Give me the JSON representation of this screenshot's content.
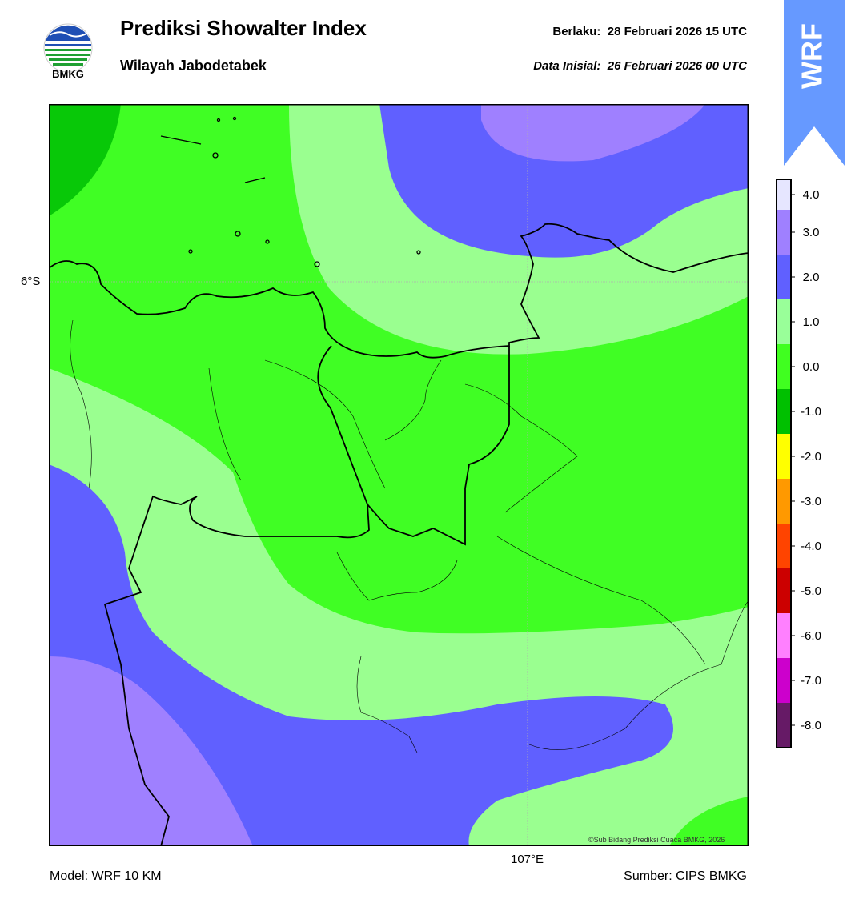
{
  "header": {
    "title": "Prediksi Showalter Index",
    "subtitle": "Wilayah Jabodetabek",
    "valid_label": "Berlaku:",
    "valid_value": "28 Februari 2026 15 UTC",
    "init_label": "Data Inisial:",
    "init_value": "26 Februari 2026 00 UTC"
  },
  "logo": {
    "text": "BMKG",
    "icon": "bmkg-logo"
  },
  "badge": {
    "text": "WRF",
    "color": "#6699ff"
  },
  "map": {
    "lat_label": "6°S",
    "lon_label": "107°E",
    "credit": "©Sub Bidang Prediksi Cuaca BMKG, 2026"
  },
  "footer": {
    "model": "Model: WRF 10 KM",
    "source": "Sumber: CIPS BMKG"
  },
  "colorbar": {
    "tick_labels": [
      "4.0",
      "3.0",
      "2.0",
      "1.0",
      "0.0",
      "-1.0",
      "-2.0",
      "-3.0",
      "-4.0",
      "-5.0",
      "-6.0",
      "-7.0",
      "-8.0"
    ],
    "colors": [
      "#e6e6ff",
      "#9f80ff",
      "#6060ff",
      "#99ff99",
      "#40ff20",
      "#00c000",
      "#ffff00",
      "#ff9900",
      "#ff4400",
      "#cc0000",
      "#ff80ff",
      "#cc00cc",
      "#661a66"
    ]
  },
  "field_colors": {
    "dark_green": "#08c808",
    "green": "#40fe24",
    "light_green": "#9aff90",
    "blue": "#6060ff",
    "violet": "#9f80ff"
  }
}
